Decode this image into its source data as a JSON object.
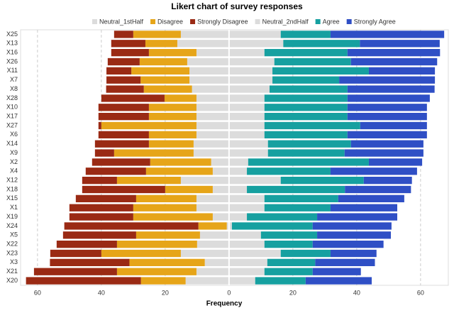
{
  "chart_data": {
    "type": "diverging_bar",
    "title": "Likert chart of survey responses",
    "x_label": "Frequency",
    "categories": [
      "X25",
      "X13",
      "X16",
      "X26",
      "X11",
      "X7",
      "X8",
      "X28",
      "X10",
      "X17",
      "X27",
      "X6",
      "X14",
      "X9",
      "X2",
      "X4",
      "X12",
      "X18",
      "X15",
      "X1",
      "X19",
      "X24",
      "X5",
      "X22",
      "X23",
      "X3",
      "X21",
      "X20"
    ],
    "series": [
      {
        "name": "Neutral_1stHalf",
        "color": "#dcdcdc",
        "side": "left",
        "values": [
          15.1,
          16.2,
          10.2,
          13.1,
          12.4,
          12.4,
          11.6,
          10.2,
          10.2,
          10.2,
          10.2,
          10.2,
          11.1,
          11.1,
          5.6,
          5.1,
          15.1,
          5.1,
          10.2,
          10.2,
          5.1,
          0.7,
          9.1,
          10,
          15.1,
          7.6,
          10.2,
          13.6
        ]
      },
      {
        "name": "Disagree",
        "color": "#e6a519",
        "side": "left",
        "values": [
          14.9,
          10,
          14.9,
          14.9,
          18.2,
          15.3,
          15.1,
          10,
          14.9,
          14.9,
          29.8,
          14.9,
          14,
          24.9,
          19.1,
          20.9,
          20,
          14.9,
          18.9,
          19.8,
          24.9,
          8.9,
          20,
          25.1,
          24.9,
          23.6,
          24.9,
          14
        ]
      },
      {
        "name": "Strongly Disagree",
        "color": "#9a2a14",
        "side": "left",
        "values": [
          6,
          10.7,
          11.8,
          10,
          7.8,
          10.7,
          11.8,
          19.8,
          15.8,
          15.8,
          0.9,
          15.8,
          16.9,
          6,
          18.2,
          18.9,
          10.9,
          26,
          18.9,
          20,
          20,
          42,
          22.9,
          18.9,
          16,
          24.9,
          26,
          36
        ]
      },
      {
        "name": "Neutral_2ndHalf",
        "color": "#dcdcdc",
        "side": "right",
        "values": [
          16.2,
          17,
          11.1,
          14.2,
          13.6,
          13.6,
          12.7,
          11.1,
          11.1,
          11.1,
          11.1,
          11.1,
          12.2,
          12.2,
          6,
          5.6,
          16.2,
          5.6,
          11.1,
          11.1,
          5.6,
          0.9,
          10,
          11.1,
          16.2,
          12,
          11.1,
          8.2
        ]
      },
      {
        "name": "Agree",
        "color": "#16a0a0",
        "side": "right",
        "values": [
          15.6,
          24,
          26,
          24,
          30.2,
          20.9,
          24.4,
          26,
          26,
          26,
          30,
          26,
          26,
          24,
          37.8,
          26.2,
          26,
          30.7,
          23.1,
          20.7,
          22,
          25.3,
          17.6,
          15.1,
          15.6,
          15,
          15.1,
          15.8
        ]
      },
      {
        "name": "Strongly Agree",
        "color": "#2f4fc5",
        "side": "right",
        "values": [
          35.6,
          25,
          29,
          27,
          20.7,
          30,
          27.3,
          25.8,
          24.9,
          24.9,
          20.9,
          24.9,
          22.7,
          24.7,
          16.7,
          27.1,
          15.1,
          20.7,
          20.7,
          20.9,
          25.1,
          24.7,
          23.1,
          22.2,
          14.4,
          18.7,
          15.1,
          20.7
        ]
      }
    ],
    "xlim": [
      -65.3,
      68.7
    ],
    "xticks": [
      {
        "value": -60,
        "label": "60"
      },
      {
        "value": -40,
        "label": "40"
      },
      {
        "value": -20,
        "label": "20"
      },
      0,
      20,
      40,
      60
    ],
    "grid": true
  }
}
